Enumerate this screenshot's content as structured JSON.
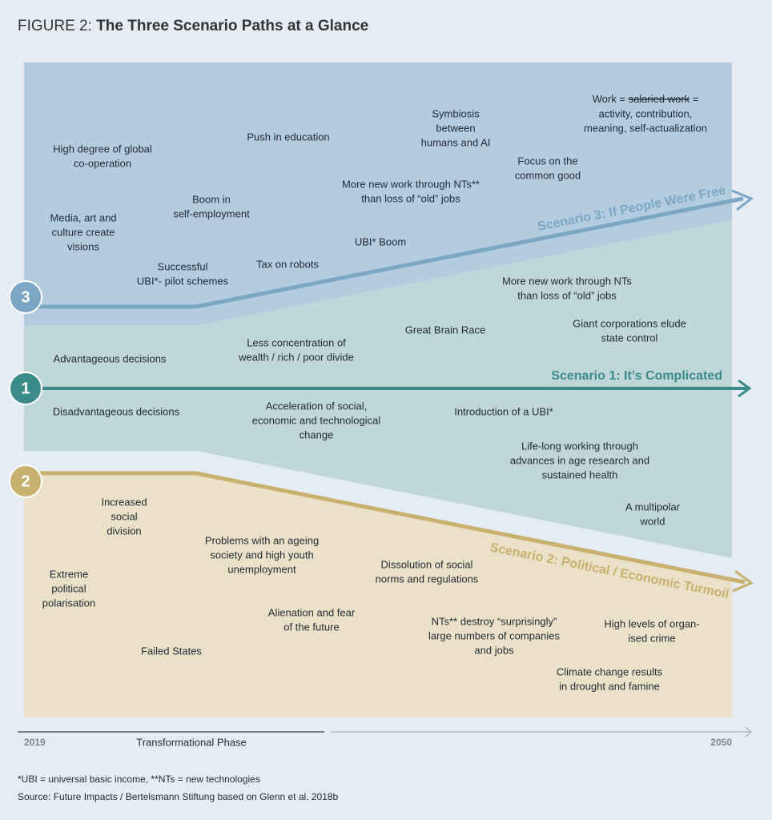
{
  "title": {
    "prefix": "FIGURE 2:",
    "main": "The Three Scenario Paths at a Glance"
  },
  "scenarios": [
    {
      "number": "3",
      "label": "Scenario 3: If People Were Free"
    },
    {
      "number": "1",
      "label": "Scenario 1: It’s Complicated"
    },
    {
      "number": "2",
      "label": "Scenario 2: Political / Economic Turmoil"
    }
  ],
  "work_item": {
    "prefix": "Work =",
    "struck": "salaried work",
    "suffix": "=",
    "lines": [
      "activity, contribution,",
      "meaning, self-actualization"
    ]
  },
  "items": [
    [
      "High degree of global",
      "co-operation"
    ],
    [
      "Push in education"
    ],
    [
      "Symbiosis",
      "between",
      "humans and AI"
    ],
    [
      "Focus on the",
      "common good"
    ],
    [
      "More new work through NTs**",
      "than loss of “old” jobs"
    ],
    [
      "Boom in",
      "self-employment"
    ],
    [
      "Media, art and",
      "culture create",
      "visions"
    ],
    [
      "UBI* Boom"
    ],
    [
      "Tax on robots"
    ],
    [
      "Successful",
      "UBI*- pilot schemes"
    ],
    [
      "More new work through NTs",
      "than loss of “old” jobs"
    ],
    [
      "Great Brain Race"
    ],
    [
      "Giant corporations elude",
      "state control"
    ],
    [
      "Less concentration of",
      "wealth / rich / poor divide"
    ],
    [
      "Advantageous decisions"
    ],
    [
      "Disadvantageous decisions"
    ],
    [
      "Acceleration of social,",
      "economic and technological",
      "change"
    ],
    [
      "Introduction of a UBI*"
    ],
    [
      "Life-long working through",
      "advances in age research and",
      "sustained health"
    ],
    [
      "A multipolar",
      "world"
    ],
    [
      "Increased",
      "social",
      "division"
    ],
    [
      "Problems with an ageing",
      "society and high youth",
      "unemployment"
    ],
    [
      "Extreme",
      "political",
      "polarisation"
    ],
    [
      "Dissolution of social",
      "norms and regulations"
    ],
    [
      "Alienation and fear",
      "of the future"
    ],
    [
      "NTs** destroy “surprisingly”",
      "large numbers of companies",
      "and jobs"
    ],
    [
      "High levels of organ-",
      "ised crime"
    ],
    [
      "Failed States"
    ],
    [
      "Climate change results",
      "in drought and famine"
    ]
  ],
  "timeline": {
    "start": "2019",
    "phase": "Transformational Phase",
    "end": "2050"
  },
  "footnotes": [
    "*UBI = universal basic income, **NTs = new technologies",
    "Source: Future Impacts / Bertelsmann Stiftung based on Glenn et al. 2018b"
  ]
}
